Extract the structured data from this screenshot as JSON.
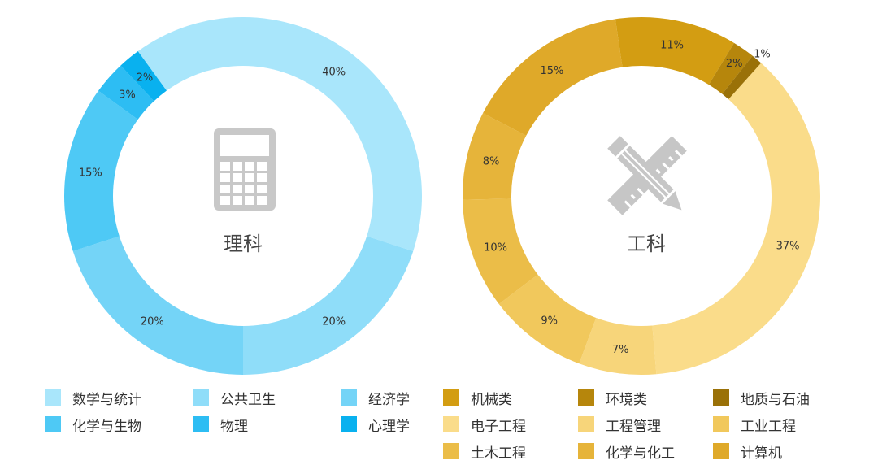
{
  "chart_data": [
    {
      "type": "pie",
      "center_label": "理科",
      "icon": "calculator-icon",
      "slices": [
        {
          "name": "数学与统计",
          "value": 40,
          "label": "40%",
          "color": "#a9e6fb"
        },
        {
          "name": "公共卫生",
          "value": 20,
          "label": "20%",
          "color": "#8fddf9"
        },
        {
          "name": "经济学",
          "value": 20,
          "label": "20%",
          "color": "#74d4f7"
        },
        {
          "name": "化学与生物",
          "value": 15,
          "label": "15%",
          "color": "#4ec9f5"
        },
        {
          "name": "物理",
          "value": 3,
          "label": "3%",
          "color": "#2dbdf3"
        },
        {
          "name": "心理学",
          "value": 2,
          "label": "2%",
          "color": "#09b1ef"
        }
      ]
    },
    {
      "type": "pie",
      "center_label": "工科",
      "icon": "pencil-ruler-icon",
      "slices": [
        {
          "name": "电子工程",
          "value": 37,
          "label": "37%",
          "color": "#fadc8a"
        },
        {
          "name": "工程管理",
          "value": 7,
          "label": "7%",
          "color": "#f7d57a"
        },
        {
          "name": "工业工程",
          "value": 9,
          "label": "9%",
          "color": "#f1c85c"
        },
        {
          "name": "土木工程",
          "value": 10,
          "label": "10%",
          "color": "#ebbd48"
        },
        {
          "name": "化学与化工",
          "value": 8,
          "label": "8%",
          "color": "#e6b43a"
        },
        {
          "name": "计算机",
          "value": 15,
          "label": "15%",
          "color": "#dfa929"
        },
        {
          "name": "机械类",
          "value": 11,
          "label": "11%",
          "color": "#d39d12"
        },
        {
          "name": "环境类",
          "value": 2,
          "label": "2%",
          "color": "#b6860c"
        },
        {
          "name": "地质与石油",
          "value": 1,
          "label": "1%",
          "color": "#9a7108"
        }
      ]
    }
  ],
  "legend": {
    "left": [
      {
        "label": "数学与统计",
        "color": "#a9e6fb"
      },
      {
        "label": "公共卫生",
        "color": "#8fddf9"
      },
      {
        "label": "经济学",
        "color": "#74d4f7"
      },
      {
        "label": "化学与生物",
        "color": "#4ec9f5"
      },
      {
        "label": "物理",
        "color": "#2dbdf3"
      },
      {
        "label": "心理学",
        "color": "#09b1ef"
      }
    ],
    "right": [
      {
        "label": "机械类",
        "color": "#d39d12"
      },
      {
        "label": "环境类",
        "color": "#b6860c"
      },
      {
        "label": "地质与石油",
        "color": "#9a7108"
      },
      {
        "label": "电子工程",
        "color": "#fadc8a"
      },
      {
        "label": "工程管理",
        "color": "#f7d57a"
      },
      {
        "label": "工业工程",
        "color": "#f1c85c"
      },
      {
        "label": "土木工程",
        "color": "#ebbd48"
      },
      {
        "label": "化学与化工",
        "color": "#e6b43a"
      },
      {
        "label": "计算机",
        "color": "#dfa929"
      }
    ]
  }
}
